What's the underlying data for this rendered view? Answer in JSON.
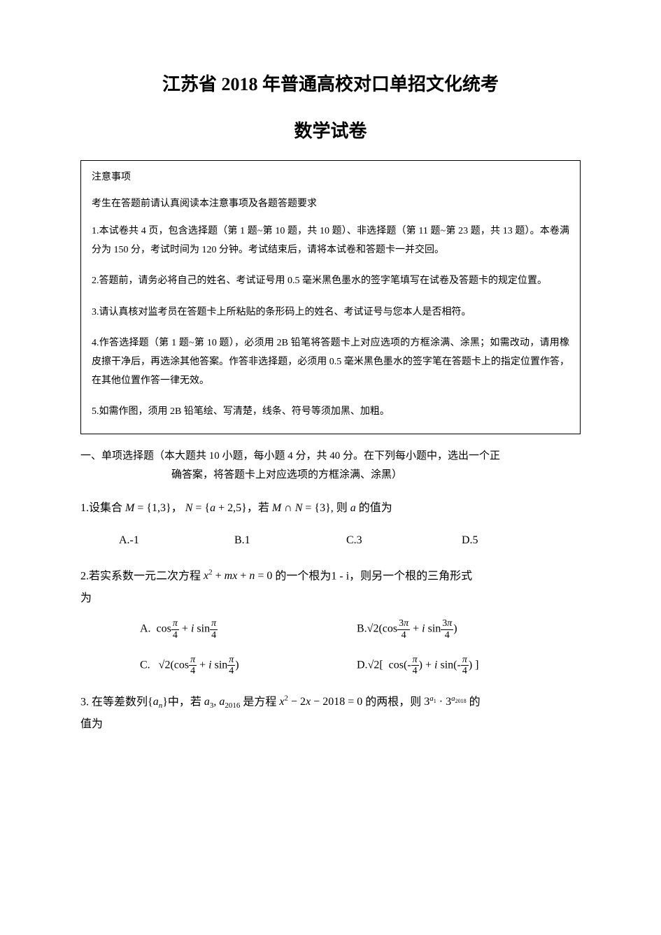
{
  "title_main": "江苏省 2018 年普通高校对口单招文化统考",
  "title_sub": "数学试卷",
  "notice": {
    "heading": "注意事项",
    "subheading": "考生在答题前请认真阅读本注意事项及各题答题要求",
    "items": [
      "1.本试卷共 4 页，包含选择题（第 1 题~第 10 题，共 10 题）、非选择题（第 11 题~第 23 题，共 13 题）。本卷满分为 150 分，考试时间为 120 分钟。考试结束后，请将本试卷和答题卡一并交回。",
      "2.答题前，请务必将自己的姓名、考试证号用 0.5 毫米黑色墨水的签字笔填写在试卷及答题卡的规定位置。",
      "3.请认真核对监考员在答题卡上所粘贴的条形码上的姓名、考试证号与您本人是否相符。",
      "4.作答选择题（第 1 题~第 10 题），必须用 2B 铅笔将答题卡上对应选项的方框涂满、涂黑；如需改动，请用橡皮擦干净后，再选涂其他答案。作答非选择题，必须用 0.5 毫米黑色墨水的签字笔在答题卡上的指定位置作答，在其他位置作答一律无效。",
      "5.如需作图，须用 2B 铅笔绘、写清楚，线条、符号等须加黑、加粗。"
    ]
  },
  "section": {
    "line1": "一、单项选择题（本大题共 10 小题，每小题 4 分，共 40 分。在下列每小题中，选出一个正",
    "line2": "确答案，将答题卡上对应选项的方框涂满、涂黑）"
  },
  "q1": {
    "text_prefix": "1.设集合 ",
    "optA": "A.-1",
    "optB": "B.1",
    "optC": "C.3",
    "optD": "D.5"
  },
  "q2": {
    "text_prefix": "2.若实系数一元二次方程 ",
    "text_suffix": "为"
  },
  "q3": {
    "text_prefix": "3. 在等差数列",
    "text_suffix": "值为"
  },
  "colors": {
    "background": "#ffffff",
    "text": "#000000",
    "border": "#000000"
  },
  "fonts": {
    "title_size": 26,
    "body_size": 14,
    "question_size": 16,
    "family_main": "SimSun",
    "family_section": "KaiTi",
    "family_math": "Times New Roman"
  }
}
